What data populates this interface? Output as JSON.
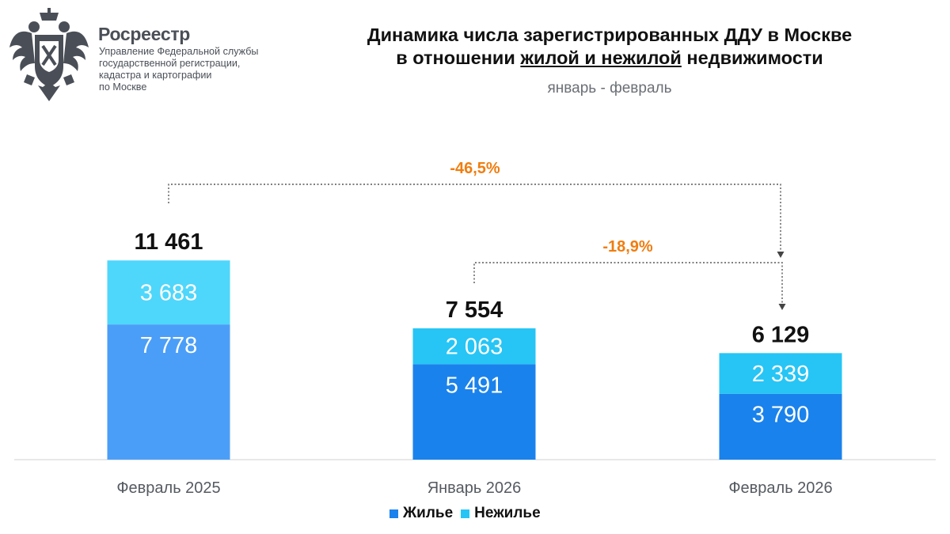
{
  "header": {
    "org_name": "Росреестр",
    "org_desc": [
      "Управление Федеральной службы",
      "государственной регистрации,",
      "кадастра и картографии",
      "по Москве"
    ]
  },
  "title": {
    "line1": "Динамика числа зарегистрированных ДДУ в Москве",
    "line2_prefix": "в отношении ",
    "line2_underlined": "жилой и нежилой",
    "line2_suffix": " недвижимости",
    "subtitle": "январь - февраль"
  },
  "legend": {
    "residential": "Жилье",
    "nonresidential": "Нежилье"
  },
  "colors": {
    "residential": "#1a82ec",
    "residential_first": "#4b9ef7",
    "nonresidential": "#26c5f5",
    "nonresidential_first": "#4fd6fb",
    "change": "#f07d0f",
    "axis": "#d0d0d0"
  },
  "chart_data": {
    "type": "bar",
    "stacked": true,
    "title": "Динамика числа зарегистрированных ДДУ в Москве в отношении жилой и нежилой недвижимости",
    "subtitle": "январь - февраль",
    "categories": [
      "Февраль 2025",
      "Январь 2026",
      "Февраль 2026"
    ],
    "series": [
      {
        "name": "Жилье",
        "values": [
          7778,
          5491,
          3790
        ],
        "labels": [
          "7 778",
          "5 491",
          "3 790"
        ]
      },
      {
        "name": "Нежилье",
        "values": [
          3683,
          2063,
          2339
        ],
        "labels": [
          "3 683",
          "2 063",
          "2 339"
        ]
      }
    ],
    "totals": [
      11461,
      7554,
      6129
    ],
    "total_labels": [
      "11 461",
      "7 554",
      "6 129"
    ],
    "changes": [
      {
        "from": "Февраль 2025",
        "to": "Февраль 2026",
        "label": "-46,5%"
      },
      {
        "from": "Январь 2026",
        "to": "Февраль 2026",
        "label": "-18,9%"
      }
    ],
    "ylim": [
      0,
      13500
    ],
    "legend_position": "bottom"
  }
}
